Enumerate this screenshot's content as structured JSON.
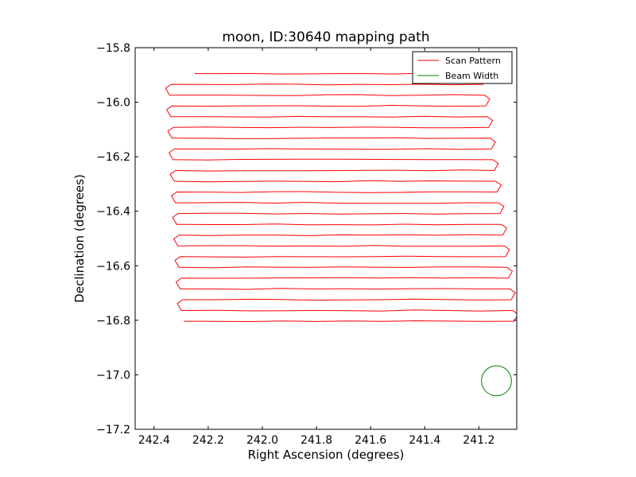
{
  "chart_data": {
    "type": "line",
    "title": "moon, ID:30640 mapping path",
    "xlabel": "Right Ascension (degrees)",
    "ylabel": "Declination (degrees)",
    "xlim": [
      242.47,
      241.06
    ],
    "ylim": [
      -17.2,
      -15.8
    ],
    "x_inverted": true,
    "xticks": [
      242.4,
      242.2,
      242.0,
      241.8,
      241.6,
      241.4,
      241.2
    ],
    "xtick_labels": [
      "242.4",
      "242.2",
      "242.0",
      "241.8",
      "241.6",
      "241.4",
      "241.2"
    ],
    "yticks": [
      -15.8,
      -16.0,
      -16.2,
      -16.4,
      -16.6,
      -16.8,
      -17.0,
      -17.2
    ],
    "ytick_labels": [
      "−15.8",
      "−16.0",
      "−16.2",
      "−16.4",
      "−16.6",
      "−16.8",
      "−17.0",
      "−17.2"
    ],
    "grid": false,
    "legend_position": "top-right",
    "series": [
      {
        "name": "Scan Pattern",
        "color": "#ff0000",
        "style": "raster-scan",
        "rows": 24,
        "dec_start": -15.895,
        "dec_step": -0.0395,
        "ra_west_start": 242.34,
        "ra_west_end": 242.29,
        "ra_east_start": 241.19,
        "ra_east_end": 241.07,
        "ra_start": 242.25
      },
      {
        "name": "Beam Width",
        "color": "#008000",
        "shape": "circle",
        "center": [
          241.135,
          -17.022
        ],
        "radius": 0.055
      }
    ]
  }
}
